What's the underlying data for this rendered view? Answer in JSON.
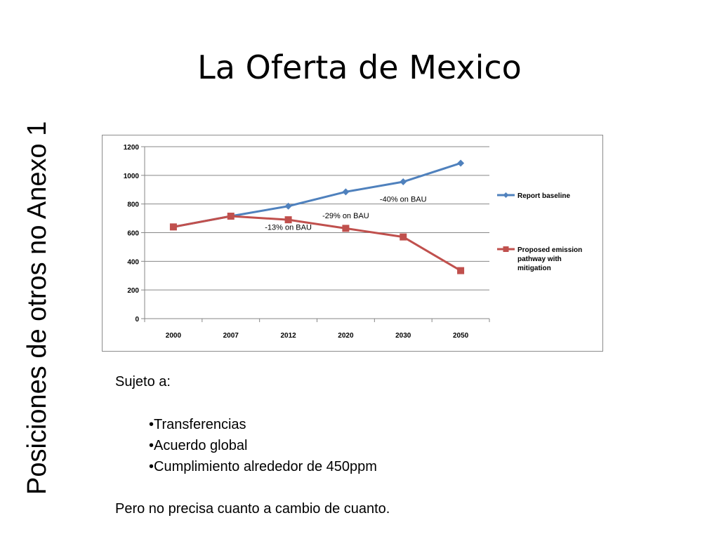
{
  "side_title": "Posiciones de otros no Anexo 1",
  "title": "La Oferta de Mexico",
  "chart_data": {
    "type": "line",
    "categories": [
      "2000",
      "2007",
      "2012",
      "2020",
      "2030",
      "2050"
    ],
    "ylim": [
      0,
      1200
    ],
    "yticks": [
      0,
      200,
      400,
      600,
      800,
      1000,
      1200
    ],
    "series": [
      {
        "name": "Report baseline",
        "color": "#4f81bd",
        "marker": "diamond",
        "values": [
          640,
          715,
          785,
          885,
          955,
          1085
        ]
      },
      {
        "name": "Proposed emission pathway with mitigation",
        "color": "#c0504d",
        "marker": "square",
        "values": [
          640,
          715,
          690,
          630,
          570,
          335
        ]
      }
    ],
    "annotations": [
      {
        "text": "-13% on BAU",
        "category": "2012",
        "value": 640
      },
      {
        "text": "-29% on BAU",
        "category": "2020",
        "value": 720
      },
      {
        "text": "-40% on BAU",
        "category": "2030",
        "value": 835
      }
    ],
    "legend_position": "right",
    "grid": true
  },
  "sujeto_label": "Sujeto a:",
  "bullets": [
    "•Transferencias",
    "•Acuerdo global",
    "•Cumplimiento alrededor de 450ppm"
  ],
  "footer_text": "Pero no precisa cuanto a cambio de cuanto."
}
